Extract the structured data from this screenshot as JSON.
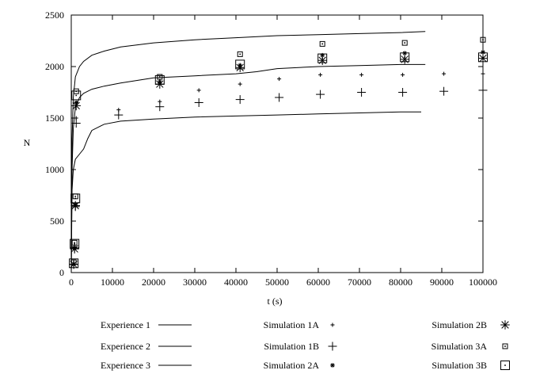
{
  "chart_data": {
    "type": "scatter",
    "title": "",
    "xlabel": "t (s)",
    "ylabel": "N",
    "xlim": [
      0,
      100000
    ],
    "ylim": [
      0,
      2500
    ],
    "xticks": [
      0,
      10000,
      20000,
      30000,
      40000,
      50000,
      60000,
      70000,
      80000,
      90000,
      100000
    ],
    "yticks": [
      0,
      500,
      1000,
      1500,
      2000,
      2500
    ],
    "grid": false,
    "legend_position": "bottom",
    "series": [
      {
        "name": "Experience 1",
        "kind": "line",
        "x": [
          0,
          200,
          500,
          1000,
          2000,
          3000,
          5000,
          8000,
          12000,
          20000,
          30000,
          40000,
          50000,
          60000,
          70000,
          80000,
          86000
        ],
        "y": [
          0,
          1300,
          1700,
          1900,
          2000,
          2050,
          2110,
          2150,
          2190,
          2230,
          2260,
          2280,
          2300,
          2310,
          2320,
          2330,
          2340
        ]
      },
      {
        "name": "Experience 2",
        "kind": "line",
        "x": [
          0,
          200,
          500,
          1000,
          2000,
          3000,
          5000,
          8000,
          12000,
          20000,
          30000,
          40000,
          45000,
          50000,
          60000,
          70000,
          80000,
          86000
        ],
        "y": [
          0,
          1000,
          1400,
          1600,
          1700,
          1740,
          1780,
          1810,
          1840,
          1890,
          1910,
          1930,
          1950,
          1980,
          2000,
          2010,
          2020,
          2020
        ]
      },
      {
        "name": "Experience 3",
        "kind": "line",
        "x": [
          0,
          200,
          500,
          1000,
          2000,
          3000,
          4000,
          5000,
          8000,
          12000,
          20000,
          30000,
          40000,
          50000,
          60000,
          70000,
          80000,
          85000
        ],
        "y": [
          0,
          800,
          1000,
          1100,
          1150,
          1200,
          1300,
          1380,
          1440,
          1470,
          1490,
          1510,
          1520,
          1530,
          1540,
          1550,
          1560,
          1560
        ]
      },
      {
        "name": "Simulation 1A",
        "kind": "marker",
        "marker": "plus-small",
        "x": [
          600,
          800,
          1000,
          1200,
          11500,
          21500,
          31000,
          41000,
          50500,
          60500,
          70500,
          80500,
          90500,
          100000
        ],
        "y": [
          80,
          250,
          650,
          1500,
          1580,
          1660,
          1770,
          1830,
          1880,
          1920,
          1920,
          1920,
          1930,
          1930
        ]
      },
      {
        "name": "Simulation 1B",
        "kind": "marker",
        "marker": "plus-large",
        "x": [
          600,
          800,
          1000,
          1200,
          11500,
          21500,
          31000,
          41000,
          50500,
          60500,
          70500,
          80500,
          90500,
          100000
        ],
        "y": [
          80,
          240,
          640,
          1450,
          1530,
          1610,
          1650,
          1680,
          1700,
          1730,
          1750,
          1750,
          1760,
          1770
        ]
      },
      {
        "name": "Simulation 2A",
        "kind": "marker",
        "marker": "star-small",
        "x": [
          600,
          800,
          1000,
          1200,
          21500,
          41000,
          61000,
          81000,
          100000
        ],
        "y": [
          80,
          240,
          660,
          1650,
          1850,
          2010,
          2110,
          2130,
          2140
        ]
      },
      {
        "name": "Simulation 2B",
        "kind": "marker",
        "marker": "star-large",
        "x": [
          600,
          800,
          1000,
          1200,
          21500,
          41000,
          61000,
          81000,
          100000
        ],
        "y": [
          80,
          230,
          650,
          1620,
          1830,
          1990,
          2060,
          2070,
          2080
        ]
      },
      {
        "name": "Simulation 3A",
        "kind": "marker",
        "marker": "square-small",
        "x": [
          600,
          800,
          1000,
          1200,
          21500,
          41000,
          61000,
          81000,
          100000
        ],
        "y": [
          100,
          290,
          740,
          1760,
          1900,
          2120,
          2220,
          2230,
          2260
        ]
      },
      {
        "name": "Simulation 3B",
        "kind": "marker",
        "marker": "square-large",
        "x": [
          600,
          800,
          1000,
          1200,
          21500,
          41000,
          61000,
          81000,
          100000
        ],
        "y": [
          90,
          280,
          720,
          1720,
          1870,
          2020,
          2080,
          2090,
          2090
        ]
      }
    ]
  }
}
